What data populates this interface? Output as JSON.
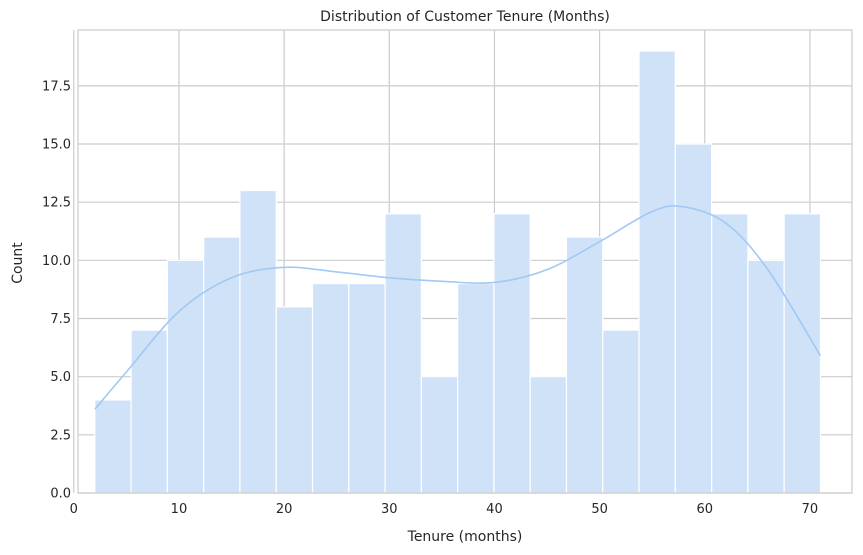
{
  "chart_data": {
    "type": "bar",
    "title": "Distribution of Customer Tenure (Months)",
    "xlabel": "Tenure (months)",
    "ylabel": "Count",
    "xlim": [
      0.4,
      74.0
    ],
    "ylim": [
      0,
      19.9
    ],
    "x_ticks": [
      0,
      10,
      20,
      30,
      40,
      50,
      60,
      70
    ],
    "x_tick_labels": [
      "0",
      "10",
      "20",
      "30",
      "40",
      "50",
      "60",
      "70"
    ],
    "y_ticks": [
      0,
      2.5,
      5,
      7.5,
      10,
      12.5,
      15,
      17.5
    ],
    "y_tick_labels": [
      "0.0",
      "2.5",
      "5.0",
      "7.5",
      "10.0",
      "12.5",
      "15.0",
      "17.5"
    ],
    "grid": true,
    "bin_edges": [
      2,
      5.45,
      8.9,
      12.35,
      15.8,
      19.25,
      22.7,
      26.15,
      29.6,
      33.05,
      36.5,
      39.95,
      43.4,
      46.85,
      50.3,
      53.75,
      57.2,
      60.65,
      64.1,
      67.55,
      71
    ],
    "values": [
      4,
      7,
      10,
      11,
      13,
      8,
      9,
      9,
      12,
      5,
      9,
      12,
      5,
      11,
      7,
      19,
      15,
      12,
      10,
      12
    ],
    "kde": {
      "x": [
        2,
        5,
        10,
        15,
        20,
        25,
        30,
        35,
        40,
        45,
        50,
        55,
        58,
        62,
        66,
        71
      ],
      "y": [
        3.6,
        5.2,
        7.8,
        9.25,
        9.7,
        9.5,
        9.25,
        9.1,
        9.05,
        9.6,
        10.8,
        12.1,
        12.3,
        11.6,
        9.6,
        5.9
      ]
    },
    "colors": {
      "bar_fill": "#cfe2f8",
      "bar_edge": "#ffffff",
      "kde_line": "#a1c9f4",
      "grid": "#cccccc",
      "text": "#262626"
    }
  }
}
